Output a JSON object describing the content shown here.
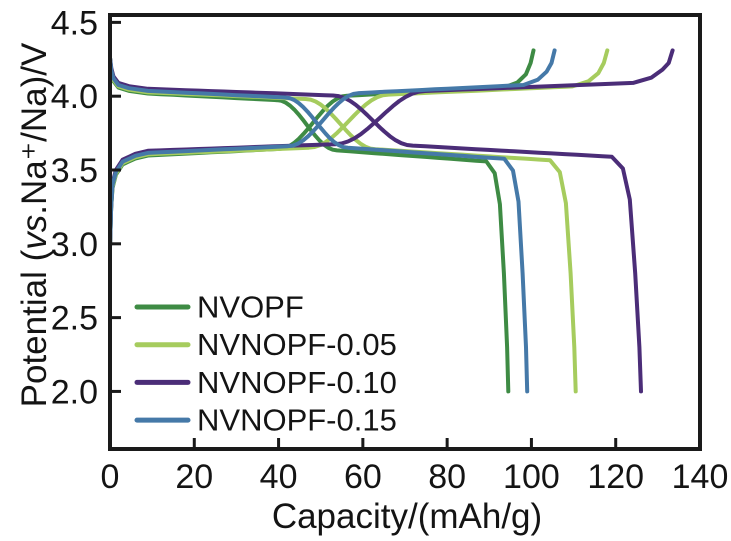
{
  "figure": {
    "background": "#ffffff",
    "text_color": "#141414",
    "frame_color": "#1a1a1a"
  },
  "axes": {
    "x": {
      "title": "Capacity/(mAh/g)",
      "min": 0,
      "max": 140,
      "ticks": [
        0,
        20,
        40,
        60,
        80,
        100,
        120,
        140
      ],
      "tick_labels": [
        "0",
        "20",
        "40",
        "60",
        "80",
        "100",
        "120",
        "140"
      ]
    },
    "y": {
      "title": "Potential (vs.Na⁺/Na)/V",
      "title_parts": {
        "pre": "Potential (",
        "italic": "vs",
        "post": ".Na⁺/Na)/V"
      },
      "min": 1.61,
      "max": 4.55,
      "ticks": [
        2.0,
        2.5,
        3.0,
        3.5,
        4.0,
        4.5
      ],
      "tick_labels": [
        "2.0",
        "2.5",
        "3.0",
        "3.5",
        "4.0",
        "4.5"
      ]
    }
  },
  "chart_data": {
    "type": "line",
    "title": "",
    "xlabel": "Capacity/(mAh/g)",
    "ylabel": "Potential (vs.Na⁺/Na)/V",
    "xlim": [
      0,
      140
    ],
    "ylim": [
      1.61,
      4.55
    ],
    "grid": false,
    "legend_position": "lower-left",
    "description": "Galvanostatic charge-discharge profiles vs Na+/Na. Each sample has a charge curve (rises from ~3.0 V, plateaus near 3.63 V then 4.05 V, ends at ~4.3 V) and a discharge curve (starts ~4.25 V, plateaus near 4.0 V then 3.6 V, ends at 2.0 V).",
    "voltage_plateaus": {
      "charge_V": [
        3.63,
        4.05
      ],
      "discharge_V": [
        4.0,
        3.6
      ],
      "charge_cutoff_V": 4.3,
      "discharge_cutoff_V": 2.0
    },
    "series": [
      {
        "name": "NVOPF",
        "color": "#3e8b44",
        "charge_capacity_mAh_g": 100.5,
        "discharge_capacity_mAh_g": 94.5,
        "plateau_offset_V": -0.012
      },
      {
        "name": "NVNOPF-0.05",
        "color": "#a6cc5e",
        "charge_capacity_mAh_g": 118.0,
        "discharge_capacity_mAh_g": 110.5,
        "plateau_offset_V": -0.004
      },
      {
        "name": "NVNOPF-0.10",
        "color": "#4b2d78",
        "charge_capacity_mAh_g": 133.5,
        "discharge_capacity_mAh_g": 126.0,
        "plateau_offset_V": 0.02
      },
      {
        "name": "NVNOPF-0.15",
        "color": "#4579a8",
        "charge_capacity_mAh_g": 105.5,
        "discharge_capacity_mAh_g": 99.0,
        "plateau_offset_V": 0.006
      }
    ],
    "curve_shape": {
      "charge": {
        "start_v": 2.98,
        "plateau1_v": [
          3.61,
          3.655
        ],
        "step_center_frac": 0.48,
        "step_width_frac": 0.16,
        "plateau2_v": [
          4.015,
          4.07
        ],
        "end_rise_start_frac": 0.93,
        "end_v": 4.31
      },
      "discharge": {
        "start_v": 4.26,
        "plateau1_v": [
          4.03,
          3.985
        ],
        "step_center_frac": 0.495,
        "step_width_frac": 0.15,
        "plateau2_v": [
          3.645,
          3.57
        ],
        "end_drop_start_frac": 0.945,
        "end_v": 2.0
      }
    }
  },
  "legend": {
    "items": [
      "NVOPF",
      "NVNOPF-0.05",
      "NVNOPF-0.10",
      "NVNOPF-0.15"
    ]
  }
}
